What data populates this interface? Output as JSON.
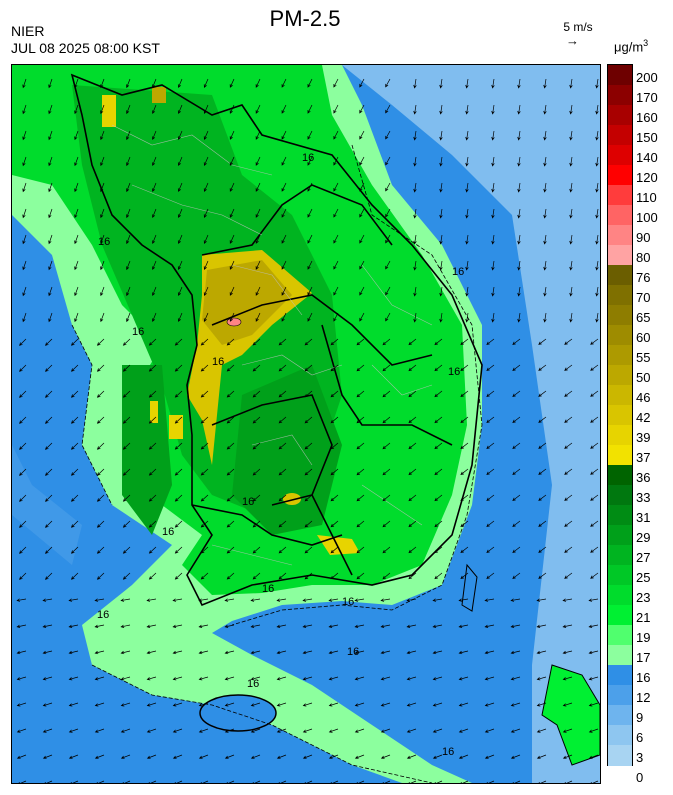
{
  "header": {
    "agency": "NIER",
    "timestamp": "JUL 08 2025 08:00 KST",
    "title": "PM-2.5",
    "wind_reference": "5 m/s",
    "wind_reference_arrow": "→",
    "unit": "μg/m",
    "unit_superscript": "3"
  },
  "map": {
    "contour_labels": [
      "16",
      "16",
      "16",
      "16",
      "16",
      "16",
      "16",
      "16",
      "16",
      "16",
      "16",
      "16",
      "16",
      "16"
    ],
    "wind_direction": "mostly from the northeast and east, offshore flow to the southwest"
  },
  "legend": {
    "labels": [
      "200",
      "170",
      "160",
      "150",
      "140",
      "120",
      "110",
      "100",
      "90",
      "80",
      "76",
      "70",
      "65",
      "60",
      "55",
      "50",
      "46",
      "42",
      "39",
      "37",
      "36",
      "33",
      "31",
      "29",
      "27",
      "25",
      "23",
      "21",
      "19",
      "17",
      "16",
      "12",
      "9",
      "6",
      "3",
      "0"
    ],
    "colors": [
      "#6e0000",
      "#8c0000",
      "#a80000",
      "#c40000",
      "#de0000",
      "#ff0000",
      "#ff3c3c",
      "#ff6464",
      "#ff8484",
      "#ffa3a3",
      "#6b5e00",
      "#7f7000",
      "#8e7d00",
      "#9e8c00",
      "#ad9a00",
      "#bca800",
      "#cbb700",
      "#d9c500",
      "#e7d400",
      "#f2e200",
      "#006400",
      "#00780f",
      "#008c14",
      "#00a01a",
      "#00b420",
      "#00c826",
      "#00dc2c",
      "#00f032",
      "#50ff6e",
      "#8cff9e",
      "#2f8fe6",
      "#4ca0ea",
      "#6eb4ee",
      "#8ec6f0",
      "#a8d4f2"
    ]
  }
}
